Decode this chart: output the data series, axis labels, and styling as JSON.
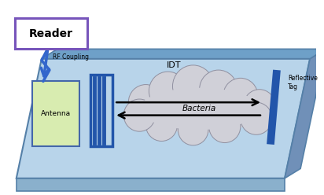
{
  "fig_width": 4.12,
  "fig_height": 2.48,
  "dpi": 100,
  "bg_color": "#ffffff",
  "board_top_color": "#b8d4ea",
  "board_edge_top_color": "#6ea0c8",
  "board_side_right_color": "#7090b8",
  "board_side_bottom_color": "#8ab0cc",
  "board_outline": "#5580a8",
  "antenna_color": "#d8ecb0",
  "antenna_border": "#4466aa",
  "idt_color": "#2255aa",
  "reflective_tag_color": "#2255aa",
  "cloud_color": "#d0d0d8",
  "cloud_border": "#9090a0",
  "reader_box_color": "#ffffff",
  "reader_border_color": "#7755bb",
  "arrow_color": "#3366cc",
  "text_color": "#000000",
  "labels": {
    "reader": "Reader",
    "rf_coupling": "RF Coupling",
    "antenna": "Antenna",
    "idt": "IDT",
    "bacteria": "Bacteria",
    "reflective_tag": "Reflective\nTag"
  }
}
